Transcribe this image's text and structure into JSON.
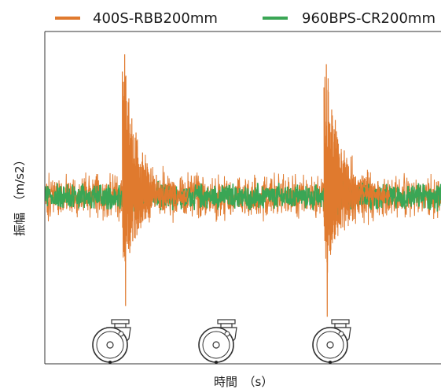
{
  "chart_data": {
    "type": "line",
    "title": "",
    "xlabel": "時間　（s）",
    "ylabel": "振幅　（m/s2）",
    "grid": false,
    "legend_position": "top",
    "series": [
      {
        "name": "400S-RBB200mm",
        "color": "#e07a2e",
        "baseline_amplitude": 0.14,
        "impacts": [
          {
            "x": 0.2,
            "peak_up": 1.0,
            "peak_down": -0.55
          },
          {
            "x": 0.71,
            "peak_up": 1.0,
            "peak_down": -0.55
          }
        ]
      },
      {
        "name": "960BPS-CR200mm",
        "color": "#3aa655",
        "baseline_amplitude": 0.08,
        "impacts": [
          {
            "x": 0.2,
            "peak_up": 0.18,
            "peak_down": -0.15
          },
          {
            "x": 0.71,
            "peak_up": 0.18,
            "peak_down": -0.15
          }
        ]
      }
    ],
    "xlim": [
      0,
      1
    ],
    "ylim": [
      -1.2,
      1.1
    ]
  },
  "icons": [
    "caster-wheel-icon",
    "caster-wheel-icon",
    "caster-wheel-icon"
  ]
}
